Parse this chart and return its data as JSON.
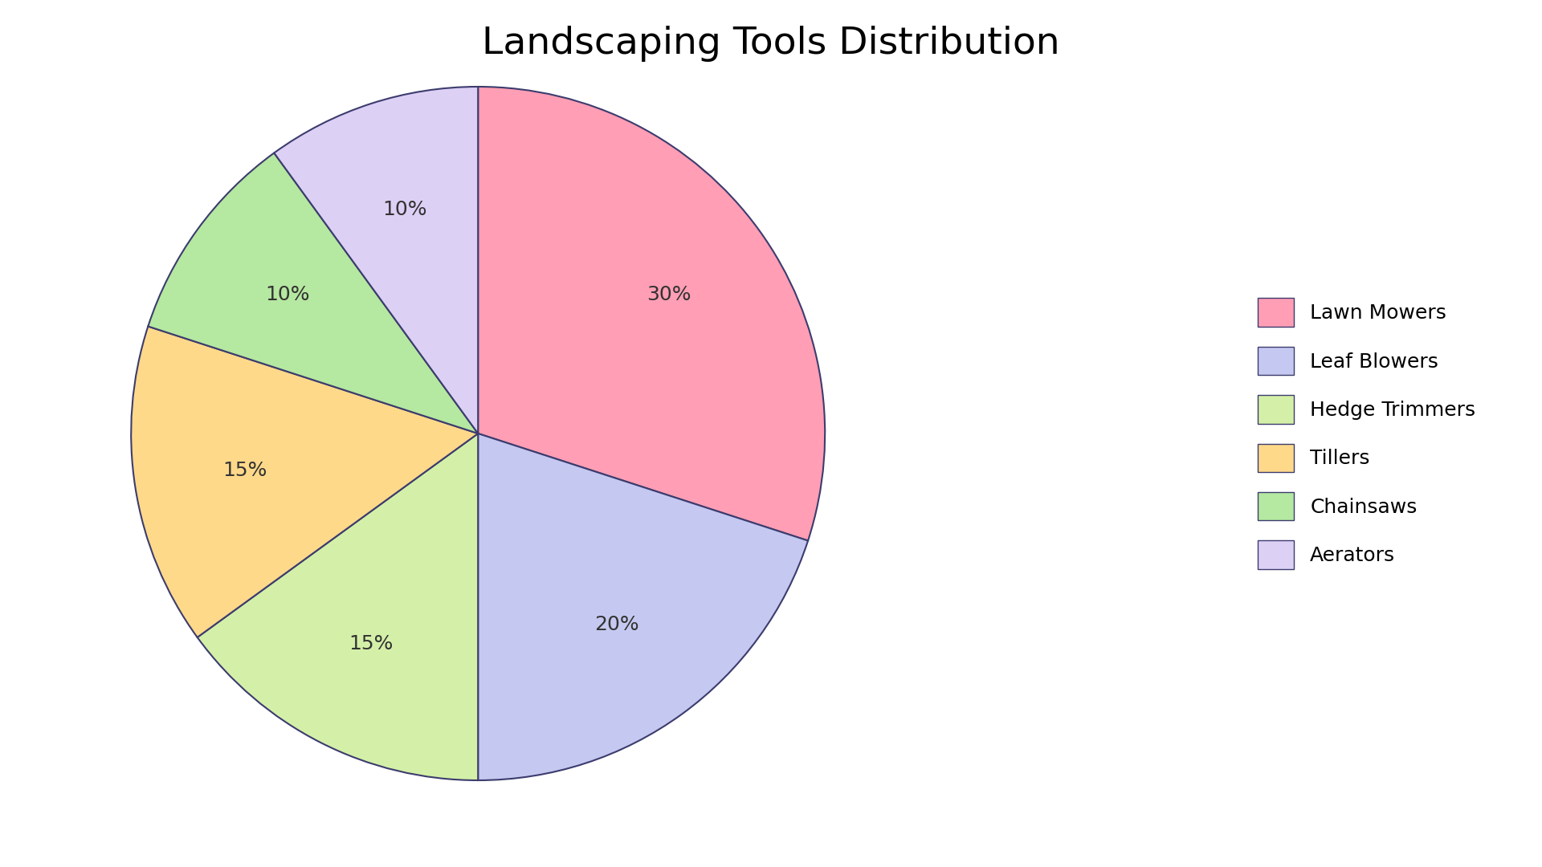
{
  "title": "Landscaping Tools Distribution",
  "labels": [
    "Lawn Mowers",
    "Leaf Blowers",
    "Hedge Trimmers",
    "Tillers",
    "Chainsaws",
    "Aerators"
  ],
  "values": [
    30,
    20,
    15,
    15,
    10,
    10
  ],
  "colors": [
    "#FF9EB5",
    "#C5C8F0",
    "#D4F0A8",
    "#FFD98A",
    "#B5E8A0",
    "#DDD0F5"
  ],
  "edge_color": "#3C3C6E",
  "edge_linewidth": 1.5,
  "startangle": 90,
  "autopct_fontsize": 18,
  "title_fontsize": 34,
  "background_color": "#FFFFFF",
  "legend_fontsize": 18,
  "pctdistance": 0.68
}
